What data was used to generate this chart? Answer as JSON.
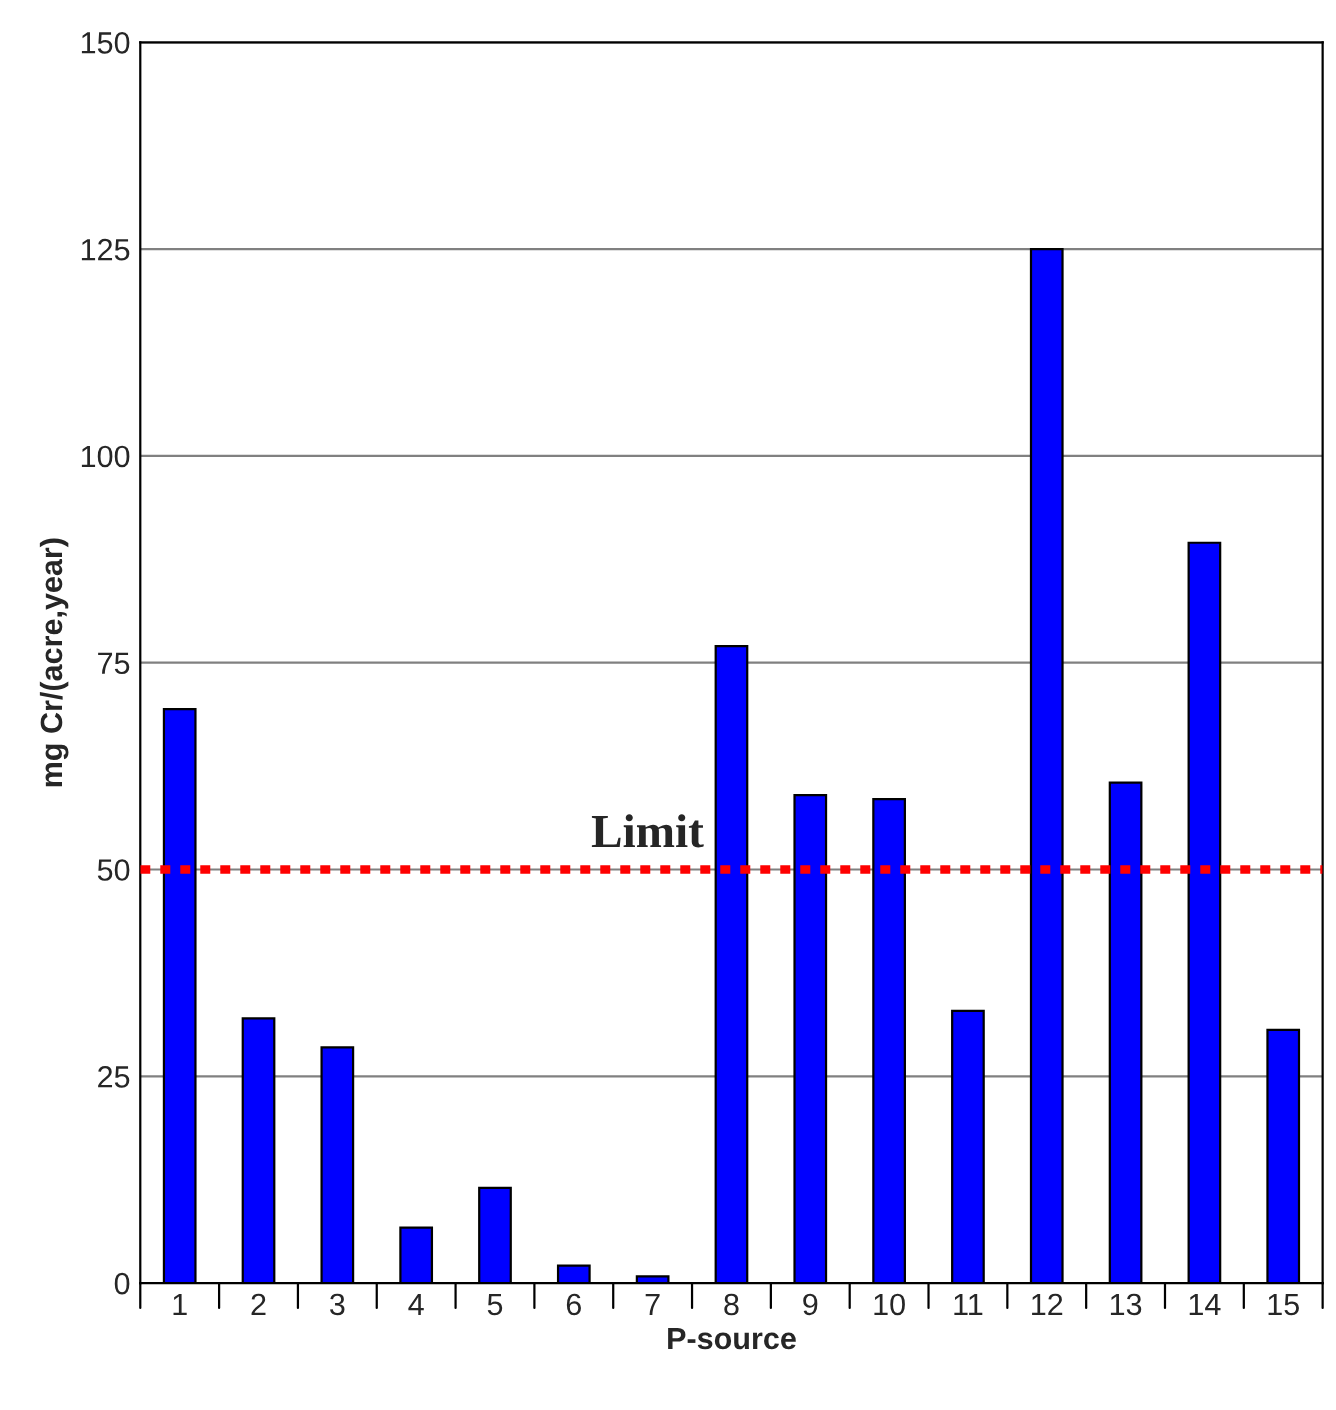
{
  "chart_data": {
    "type": "bar",
    "xlabel": "P-source",
    "ylabel": "mg Cr/(acre,year)",
    "categories": [
      "1",
      "2",
      "3",
      "4",
      "5",
      "6",
      "7",
      "8",
      "9",
      "10",
      "11",
      "12",
      "13",
      "14",
      "15"
    ],
    "values": [
      69.4,
      32,
      28.5,
      6.7,
      11.5,
      2.1,
      0.8,
      77,
      59,
      58.5,
      32.9,
      125,
      60.5,
      89.5,
      30.6
    ],
    "color": "#0000ff",
    "ylim": [
      0,
      150
    ],
    "yticks": [
      0,
      25,
      50,
      75,
      100,
      125,
      150
    ],
    "grid": "y",
    "ref_lines": [
      {
        "axis": "y",
        "value": 50,
        "label": "Limit",
        "color": "#ff0000",
        "line_style": "dotted"
      }
    ]
  }
}
